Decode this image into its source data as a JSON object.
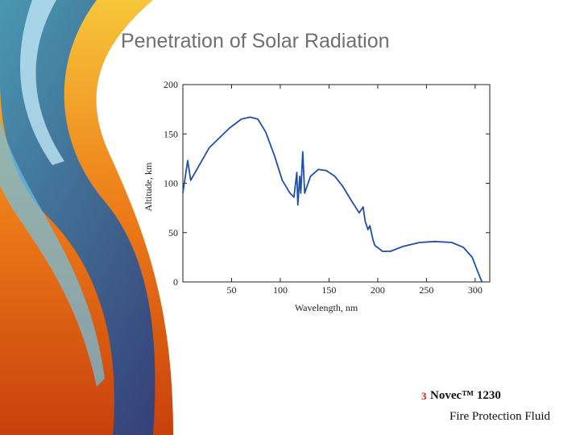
{
  "chart_data": {
    "type": "line",
    "title": "Penetration of Solar Radiation",
    "x_label": "Wavelength, nm",
    "y_label": "Altitude, km",
    "x": [
      0,
      5,
      8,
      27,
      48,
      60,
      69,
      77,
      85,
      94,
      102,
      110,
      114,
      117,
      118,
      120,
      121,
      123,
      125,
      131,
      139,
      147,
      156,
      164,
      172,
      181,
      185,
      187,
      190,
      192,
      195,
      197,
      205,
      213,
      226,
      243,
      259,
      276,
      288,
      297,
      302,
      307
    ],
    "series": [
      {
        "name": "Altitude",
        "color": "#1f4fa8",
        "values": [
          90,
          123,
          103,
          136,
          156,
          165,
          167,
          165,
          152,
          128,
          103,
          90,
          86,
          111,
          78,
          107,
          90,
          132,
          90,
          107,
          114,
          113,
          107,
          97,
          84,
          70,
          76,
          62,
          53,
          57,
          43,
          37,
          31,
          31,
          36,
          40,
          41,
          40,
          35,
          25,
          12,
          0
        ]
      }
    ],
    "xlim": [
      0,
      315
    ],
    "ylim": [
      0,
      200
    ],
    "xticks": [
      50,
      100,
      150,
      200,
      250,
      300
    ],
    "yticks": [
      0,
      50,
      100,
      150,
      200
    ]
  },
  "footer": {
    "logo": "3",
    "product": "Novec™ 1230",
    "subtitle": "Fire Protection Fluid"
  }
}
